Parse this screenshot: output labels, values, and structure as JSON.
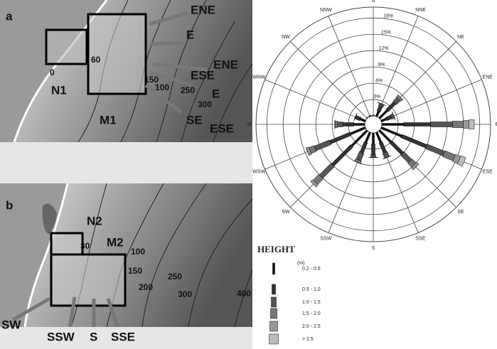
{
  "panels": [
    {
      "label": "a",
      "site_labels": [
        "N1",
        "M1"
      ],
      "direction_labels": [
        "ENE",
        "E",
        "ENE",
        "ESE",
        "E",
        "SE",
        "ESE"
      ],
      "depth_labels": [
        "0",
        "60",
        "150",
        "100",
        "250",
        "300"
      ]
    },
    {
      "label": "b",
      "site_labels": [
        "N2",
        "M2"
      ],
      "direction_labels": [
        "SW",
        "SSW",
        "S",
        "SSE"
      ],
      "depth_labels": [
        "30",
        "100",
        "150",
        "200",
        "250",
        "300",
        "400"
      ]
    }
  ],
  "chart_data": {
    "type": "rose",
    "directions": [
      "N",
      "NNE",
      "NE",
      "ENE",
      "E",
      "ESE",
      "SE",
      "SSE",
      "S",
      "SSW",
      "SW",
      "WSW",
      "W",
      "WNW",
      "NW",
      "NNW"
    ],
    "rlim": [
      0,
      20
    ],
    "rticks": [
      {
        "value": 3,
        "label": "3%"
      },
      {
        "value": 6,
        "label": "6%"
      },
      {
        "value": 9,
        "label": "9%"
      },
      {
        "value": 12,
        "label": "12%"
      },
      {
        "value": 15,
        "label": "15%"
      },
      {
        "value": 18,
        "label": "18%"
      }
    ],
    "legend_title": "HEIGHT",
    "legend_unit": "(m)",
    "series": [
      {
        "name": "0.2 - 0.5",
        "color": "#111111",
        "values": [
          0,
          1,
          2,
          1,
          4,
          4,
          3,
          2,
          2,
          2,
          4,
          3,
          2,
          1,
          0,
          0
        ]
      },
      {
        "name": "0.5 - 1.0",
        "color": "#333333",
        "values": [
          0,
          1,
          2,
          1,
          5,
          5,
          3,
          2,
          2,
          2,
          5,
          4,
          2,
          1,
          0,
          0
        ]
      },
      {
        "name": "1.0 - 1.5",
        "color": "#555555",
        "values": [
          0,
          0.5,
          1,
          0.5,
          4,
          3.5,
          2,
          1,
          0.5,
          1.5,
          3,
          3,
          1,
          0,
          0,
          0
        ]
      },
      {
        "name": "1.5 - 2.0",
        "color": "#777777",
        "values": [
          0,
          0,
          0.5,
          0,
          2,
          2,
          1,
          0,
          0,
          0.5,
          1.5,
          1,
          0.5,
          0,
          0,
          0
        ]
      },
      {
        "name": "2.0 - 2.5",
        "color": "#999999",
        "values": [
          0,
          0,
          0,
          0,
          1,
          1,
          0.5,
          0,
          0,
          0,
          0.5,
          0.5,
          0,
          0,
          0,
          0
        ]
      },
      {
        "name": "> 2.5",
        "color": "#bbbbbb",
        "values": [
          0,
          0,
          0,
          0,
          1,
          1,
          0,
          0,
          0,
          0,
          0,
          0,
          0,
          0,
          0,
          0
        ]
      }
    ]
  }
}
